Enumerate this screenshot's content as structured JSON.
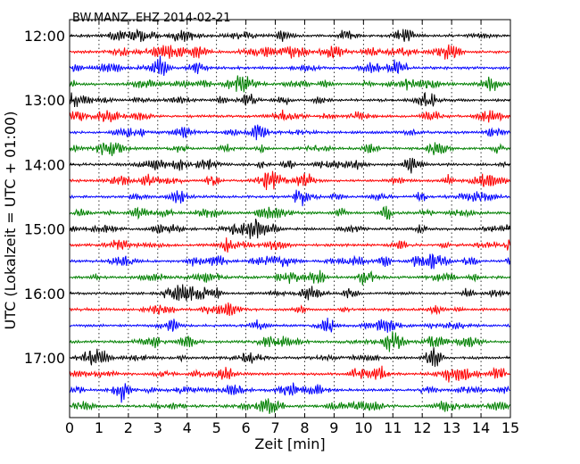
{
  "chart_data": {
    "type": "line",
    "title": "BW.MANZ..EHZ 2014-02-21",
    "xlabel": "Zeit  [min]",
    "ylabel": "UTC (Lokalzeit = UTC + 01:00)",
    "xlim": [
      0,
      15
    ],
    "x_ticks": [
      "0",
      "1",
      "2",
      "3",
      "4",
      "5",
      "6",
      "7",
      "8",
      "9",
      "10",
      "11",
      "12",
      "13",
      "14",
      "15"
    ],
    "y_tick_labels": [
      "12:00",
      "13:00",
      "14:00",
      "15:00",
      "16:00",
      "17:00"
    ],
    "rows": 24,
    "row_interval_min": 15,
    "start_time": "12:00",
    "trace_colors": [
      "#000000",
      "#ff0000",
      "#0000ff",
      "#008000"
    ],
    "grid": "vertical dotted at each minute"
  }
}
